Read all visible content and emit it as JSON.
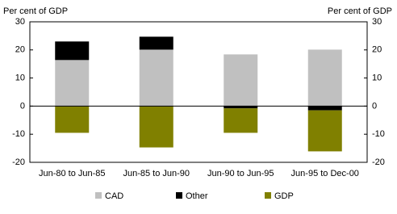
{
  "chart_data": {
    "type": "bar",
    "stacked": true,
    "y_label": "Per cent of GDP",
    "y2_label": "Per cent of GDP",
    "categories": [
      "Jun-80 to Jun-85",
      "Jun-85 to Jun-90",
      "Jun-90 to Jun-95",
      "Jun-95 to Dec-00"
    ],
    "series": [
      {
        "name": "CAD",
        "color": "#c0c0c0",
        "values": [
          16.4,
          20.1,
          18.4,
          20.1
        ]
      },
      {
        "name": "Other",
        "color": "#000000",
        "values": [
          6.6,
          4.6,
          -0.8,
          -1.5
        ]
      },
      {
        "name": "GDP",
        "color": "#808000",
        "values": [
          -9.5,
          -14.7,
          -8.7,
          -14.6
        ]
      }
    ],
    "ylim": [
      -20,
      30
    ],
    "yticks": [
      -20,
      -10,
      0,
      10,
      20,
      30
    ],
    "y2lim": [
      -20,
      30
    ],
    "y2ticks": [
      -20,
      -10,
      0,
      10,
      20,
      30
    ],
    "legend": "bottom"
  }
}
